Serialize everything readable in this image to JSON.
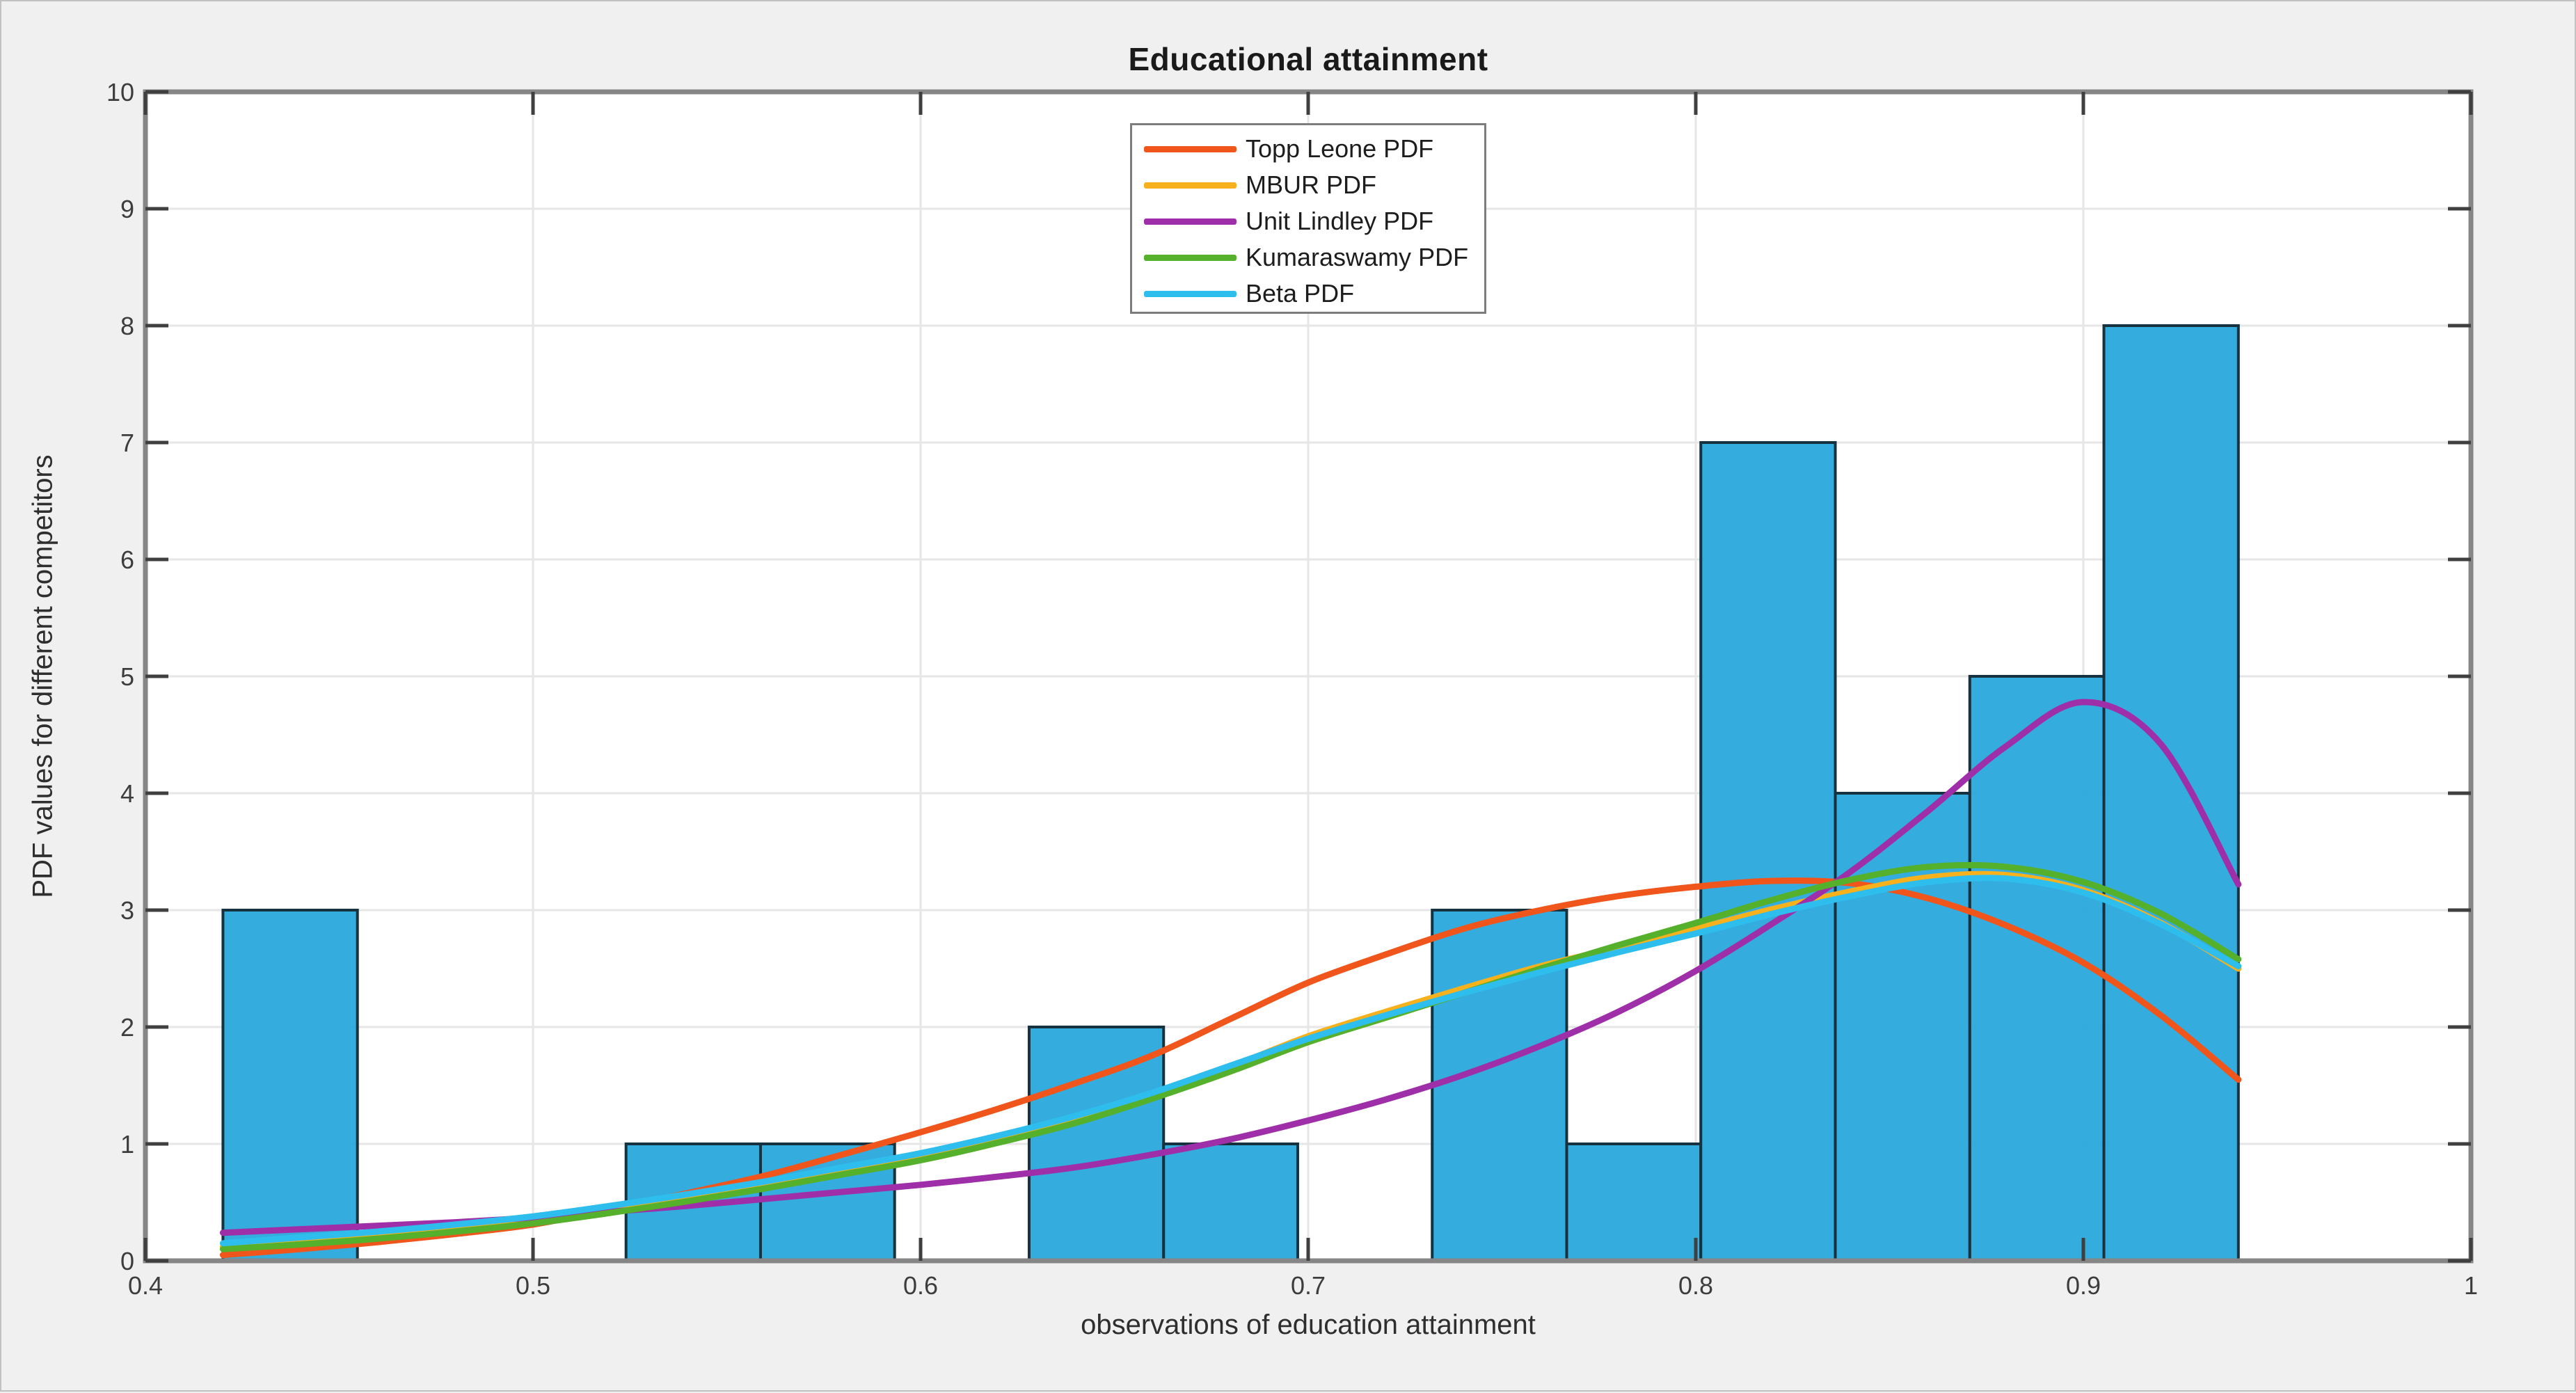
{
  "window": {
    "background": "#f0f0f0",
    "border_color": "#c2c2c2"
  },
  "style": {
    "plot_background": "#ffffff",
    "grid_color": "#e6e6e6",
    "axis_box_color": "#868686",
    "tick_color": "#3f3f3f",
    "tick_label_color": "#3d3d3d",
    "title_color": "#1a1a1a",
    "axis_label_color": "#2e2e2e",
    "legend_background": "#ffffff",
    "legend_border": "#7d7d7d"
  },
  "chart_data": {
    "type": "histogram_with_fitted_pdf_lines",
    "title": "Educational attainment",
    "xlabel": "observations of education attainment",
    "ylabel": "PDF values for different competitors",
    "xlim": [
      0.4,
      1
    ],
    "ylim": [
      0,
      10
    ],
    "xtick_values": [
      0.4,
      0.5,
      0.6,
      0.7,
      0.8,
      0.9,
      1
    ],
    "xtick_labels": [
      "0.4",
      "0.5",
      "0.6",
      "0.7",
      "0.8",
      "0.9",
      "1"
    ],
    "ytick_values": [
      0,
      1,
      2,
      3,
      4,
      5,
      6,
      7,
      8,
      9,
      10
    ],
    "ytick_labels": [
      "0",
      "1",
      "2",
      "3",
      "4",
      "5",
      "6",
      "7",
      "8",
      "9",
      "10"
    ],
    "grid": true,
    "legend_position": "top-center",
    "histogram": {
      "fill": "#29a9dc",
      "edge": "#16323f",
      "bin_edges": [
        0.42,
        0.4547,
        0.4893,
        0.524,
        0.5587,
        0.5933,
        0.628,
        0.6627,
        0.6973,
        0.732,
        0.7667,
        0.8013,
        0.836,
        0.8707,
        0.9053,
        0.94
      ],
      "counts": [
        3,
        0,
        0,
        1,
        1,
        0,
        2,
        1,
        0,
        3,
        1,
        7,
        4,
        5,
        8
      ]
    },
    "curve_x": [
      0.42,
      0.44,
      0.46,
      0.48,
      0.5,
      0.52,
      0.54,
      0.56,
      0.58,
      0.6,
      0.62,
      0.64,
      0.66,
      0.68,
      0.7,
      0.72,
      0.74,
      0.76,
      0.78,
      0.8,
      0.82,
      0.84,
      0.86,
      0.88,
      0.9,
      0.92,
      0.94
    ],
    "series": [
      {
        "name": "Topp Leone PDF",
        "color": "#f0551c",
        "y": [
          0.05,
          0.1,
          0.16,
          0.23,
          0.31,
          0.44,
          0.58,
          0.73,
          0.91,
          1.1,
          1.3,
          1.52,
          1.76,
          2.07,
          2.38,
          2.62,
          2.84,
          3.0,
          3.12,
          3.2,
          3.25,
          3.23,
          3.1,
          2.87,
          2.55,
          2.1,
          1.55
        ]
      },
      {
        "name": "MBUR PDF",
        "color": "#f6b11d",
        "y": [
          0.12,
          0.17,
          0.22,
          0.28,
          0.35,
          0.44,
          0.54,
          0.65,
          0.76,
          0.88,
          1.03,
          1.21,
          1.42,
          1.66,
          1.92,
          2.13,
          2.33,
          2.52,
          2.68,
          2.84,
          3.01,
          3.16,
          3.28,
          3.3,
          3.17,
          2.89,
          2.5
        ]
      },
      {
        "name": "Unit Lindley PDF",
        "color": "#9e2fa8",
        "y": [
          0.24,
          0.27,
          0.3,
          0.33,
          0.37,
          0.42,
          0.47,
          0.53,
          0.59,
          0.65,
          0.72,
          0.8,
          0.91,
          1.04,
          1.2,
          1.38,
          1.59,
          1.84,
          2.13,
          2.48,
          2.89,
          3.33,
          3.85,
          4.4,
          4.78,
          4.42,
          3.22
        ]
      },
      {
        "name": "Kumaraswamy PDF",
        "color": "#55b02b",
        "y": [
          0.1,
          0.14,
          0.19,
          0.25,
          0.32,
          0.41,
          0.51,
          0.62,
          0.74,
          0.86,
          1.01,
          1.18,
          1.39,
          1.62,
          1.87,
          2.08,
          2.29,
          2.5,
          2.7,
          2.89,
          3.09,
          3.26,
          3.37,
          3.37,
          3.24,
          2.97,
          2.58
        ]
      },
      {
        "name": "Beta PDF",
        "color": "#2ebeee",
        "y": [
          0.15,
          0.2,
          0.25,
          0.31,
          0.38,
          0.47,
          0.57,
          0.68,
          0.8,
          0.92,
          1.07,
          1.24,
          1.44,
          1.67,
          1.9,
          2.1,
          2.29,
          2.47,
          2.64,
          2.8,
          2.97,
          3.12,
          3.24,
          3.27,
          3.15,
          2.88,
          2.52
        ]
      }
    ]
  }
}
